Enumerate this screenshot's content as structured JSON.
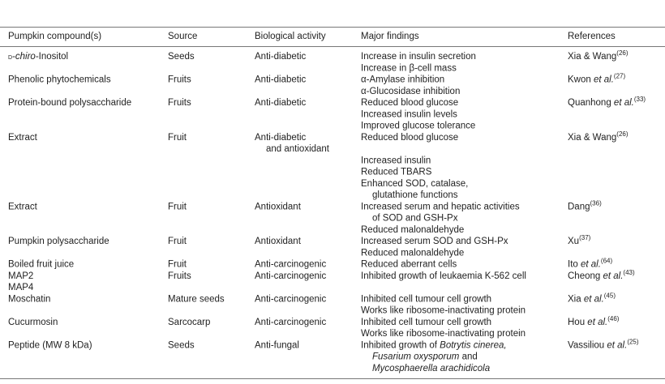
{
  "table": {
    "header": [
      "Pumpkin compound(s)",
      "Source",
      "Biological activity",
      "Major findings",
      "References"
    ],
    "rows": [
      {
        "compound": [
          [
            {
              "text": "d",
              "style": "smallcaps"
            },
            "-",
            {
              "text": "chiro",
              "style": "italic"
            },
            "-Inositol"
          ]
        ],
        "source": [
          "Seeds"
        ],
        "activity": [
          "Anti-diabetic"
        ],
        "findings": [
          [
            "Increase in insulin secretion"
          ],
          [
            "Increase in β-cell mass"
          ]
        ],
        "reference": [
          [
            "Xia & Wang",
            {
              "text": "(26)",
              "style": "sup"
            }
          ]
        ]
      },
      {
        "compound": [
          "Phenolic phytochemicals"
        ],
        "source": [
          "Fruits"
        ],
        "activity": [
          "Anti-diabetic"
        ],
        "findings": [
          [
            "α-Amylase inhibition"
          ],
          [
            "α-Glucosidase inhibition"
          ]
        ],
        "reference": [
          [
            "Kwon ",
            {
              "text": "et al.",
              "style": "italic"
            },
            {
              "text": "(27)",
              "style": "sup"
            }
          ]
        ]
      },
      {
        "compound": [
          "Protein-bound polysaccharide"
        ],
        "source": [
          "Fruits"
        ],
        "activity": [
          "Anti-diabetic"
        ],
        "findings": [
          [
            "Reduced blood glucose"
          ],
          [
            "Increased insulin levels"
          ],
          [
            "Improved glucose tolerance"
          ]
        ],
        "reference": [
          [
            "Quanhong ",
            {
              "text": "et al.",
              "style": "italic"
            },
            {
              "text": "(33)",
              "style": "sup"
            }
          ]
        ]
      },
      {
        "compound": [
          "Extract"
        ],
        "source": [
          "Fruit"
        ],
        "activity": [
          "Anti-diabetic",
          "and antioxidant"
        ],
        "findings": [
          [
            "Reduced blood glucose"
          ],
          [
            "Increased insulin"
          ],
          [
            "Reduced TBARS"
          ],
          [
            "Enhanced SOD, catalase,",
            "glutathione functions"
          ]
        ],
        "reference": [
          [
            "Xia & Wang",
            {
              "text": "(26)",
              "style": "sup"
            }
          ]
        ]
      },
      {
        "compound": [
          "Extract"
        ],
        "source": [
          "Fruit"
        ],
        "activity": [
          "Antioxidant"
        ],
        "findings": [
          [
            "Increased serum and hepatic activities",
            "of SOD and GSH-Px"
          ],
          [
            "Reduced malonaldehyde"
          ]
        ],
        "reference": [
          [
            "Dang",
            {
              "text": "(36)",
              "style": "sup"
            }
          ]
        ]
      },
      {
        "compound": [
          "Pumpkin polysaccharide"
        ],
        "source": [
          "Fruit"
        ],
        "activity": [
          "Antioxidant"
        ],
        "findings": [
          [
            "Increased serum SOD and GSH-Px"
          ],
          [
            "Reduced malonaldehyde"
          ]
        ],
        "reference": [
          [
            "Xu",
            {
              "text": "(37)",
              "style": "sup"
            }
          ]
        ]
      },
      {
        "compound": [
          "Boiled fruit juice"
        ],
        "source": [
          "Fruit"
        ],
        "activity": [
          "Anti-carcinogenic"
        ],
        "findings": [
          [
            "Reduced aberrant cells"
          ]
        ],
        "reference": [
          [
            "Ito ",
            {
              "text": "et al.",
              "style": "italic"
            },
            {
              "text": "(64)",
              "style": "sup"
            }
          ]
        ]
      },
      {
        "compound": [
          "MAP2",
          "MAP4"
        ],
        "source": [
          "Fruits"
        ],
        "activity": [
          "Anti-carcinogenic"
        ],
        "findings": [
          [
            "Inhibited growth of leukaemia K-562 cell"
          ]
        ],
        "reference": [
          [
            "Cheong ",
            {
              "text": "et al.",
              "style": "italic"
            },
            {
              "text": "(43)",
              "style": "sup"
            }
          ]
        ]
      },
      {
        "compound": [
          "Moschatin"
        ],
        "source": [
          "Mature seeds"
        ],
        "activity": [
          "Anti-carcinogenic"
        ],
        "findings": [
          [
            "Inhibited cell tumour cell growth"
          ],
          [
            "Works like ribosome-inactivating protein"
          ]
        ],
        "reference": [
          [
            "Xia ",
            {
              "text": "et al.",
              "style": "italic"
            },
            {
              "text": "(45)",
              "style": "sup"
            }
          ]
        ]
      },
      {
        "compound": [
          "Cucurmosin"
        ],
        "source": [
          "Sarcocarp"
        ],
        "activity": [
          "Anti-carcinogenic"
        ],
        "findings": [
          [
            "Inhibited cell tumour cell growth"
          ],
          [
            "Works like ribosome-inactivating protein"
          ]
        ],
        "reference": [
          [
            "Hou ",
            {
              "text": "et al.",
              "style": "italic"
            },
            {
              "text": "(46)",
              "style": "sup"
            }
          ]
        ]
      },
      {
        "compound": [
          "Peptide (MW 8 kDa)"
        ],
        "source": [
          "Seeds"
        ],
        "activity": [
          "Anti-fungal"
        ],
        "findings": [
          [
            [
              "Inhibited growth of ",
              {
                "text": "Botrytis cinerea,",
                "style": "italic"
              }
            ],
            [
              {
                "text": "Fusarium oxysporum",
                "style": "italic"
              },
              " and"
            ],
            [
              {
                "text": "Mycosphaerella arachidicola",
                "style": "italic"
              }
            ]
          ]
        ],
        "reference": [
          [
            "Vassiliou ",
            {
              "text": "et al.",
              "style": "italic"
            },
            {
              "text": "(25)",
              "style": "sup"
            }
          ]
        ]
      }
    ]
  }
}
